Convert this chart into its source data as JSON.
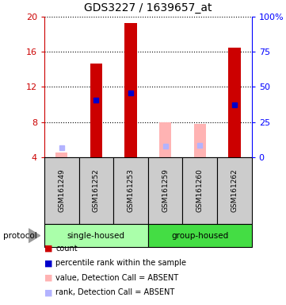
{
  "title": "GDS3227 / 1639657_at",
  "samples": [
    "GSM161249",
    "GSM161252",
    "GSM161253",
    "GSM161259",
    "GSM161260",
    "GSM161262"
  ],
  "absent": [
    true,
    false,
    false,
    true,
    true,
    false
  ],
  "count_values": [
    4.5,
    14.7,
    19.3,
    8.0,
    7.8,
    16.5
  ],
  "rank_values": [
    null,
    10.5,
    11.3,
    null,
    null,
    10.0
  ],
  "absent_rank_values": [
    6.9,
    null,
    null,
    8.0,
    8.5,
    null
  ],
  "ylim_left": [
    4,
    20
  ],
  "ylim_right": [
    0,
    100
  ],
  "yticks_left": [
    4,
    8,
    12,
    16,
    20
  ],
  "yticks_right": [
    0,
    25,
    50,
    75,
    100
  ],
  "bar_width": 0.35,
  "red_color": "#cc0000",
  "pink_color": "#ffb3b3",
  "blue_color": "#0000cc",
  "lightblue_color": "#b3b3ff",
  "plot_bg": "#ffffff",
  "title_fontsize": 10,
  "tick_fontsize": 8,
  "single_housed_color": "#aaffaa",
  "group_housed_color": "#44dd44"
}
